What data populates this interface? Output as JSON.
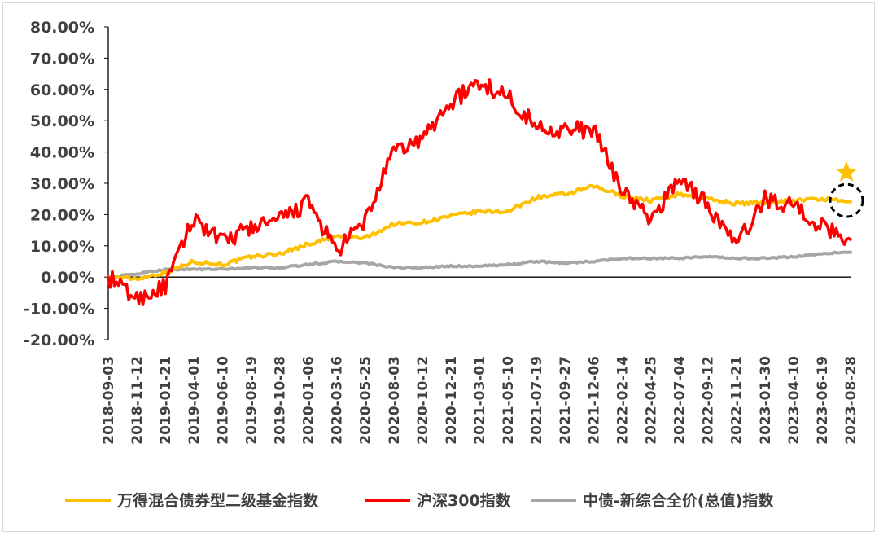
{
  "chart_data": {
    "type": "line",
    "title": "",
    "xlabel": "",
    "ylabel": "",
    "ylim": [
      -20,
      80
    ],
    "yticks": [
      "80.00%",
      "70.00%",
      "60.00%",
      "50.00%",
      "40.00%",
      "30.00%",
      "20.00%",
      "10.00%",
      "0.00%",
      "-10.00%",
      "-20.00%"
    ],
    "ytick_values": [
      80,
      70,
      60,
      50,
      40,
      30,
      20,
      10,
      0,
      -10,
      -20
    ],
    "x": [
      "2018-09-03",
      "2018-11-12",
      "2019-01-21",
      "2019-04-01",
      "2019-06-10",
      "2019-08-19",
      "2019-10-28",
      "2020-01-06",
      "2020-03-16",
      "2020-05-25",
      "2020-08-03",
      "2020-10-12",
      "2020-12-21",
      "2021-03-01",
      "2021-05-10",
      "2021-07-19",
      "2021-09-27",
      "2021-12-06",
      "2022-02-14",
      "2022-04-25",
      "2022-07-04",
      "2022-09-12",
      "2022-11-21",
      "2023-01-30",
      "2023-04-10",
      "2023-06-19",
      "2023-08-28"
    ],
    "legend_position": "bottom",
    "grid": false,
    "series": [
      {
        "name": "万得混合债券型二级基金指数",
        "color": "#FFC000",
        "values": [
          0.0,
          -0.5,
          1.5,
          5.0,
          4.0,
          6.5,
          7.5,
          10.5,
          13.0,
          12.5,
          17.0,
          17.5,
          19.5,
          21.0,
          21.0,
          25.5,
          26.5,
          29.0,
          26.0,
          24.5,
          26.5,
          25.0,
          23.5,
          24.0,
          24.5,
          25.0,
          24.0
        ]
      },
      {
        "name": "沪深300指数",
        "color": "#FF0000",
        "values": [
          0.0,
          -7.0,
          -3.0,
          19.0,
          11.0,
          16.0,
          18.0,
          24.0,
          8.0,
          18.0,
          40.0,
          44.0,
          56.0,
          62.0,
          58.0,
          48.0,
          47.0,
          47.0,
          28.0,
          18.0,
          32.0,
          23.0,
          10.0,
          25.0,
          23.0,
          16.0,
          12.0
        ]
      },
      {
        "name": "中债-新综合全价(总值)指数",
        "color": "#A6A6A6",
        "values": [
          0.0,
          1.0,
          2.5,
          2.5,
          2.5,
          3.0,
          3.0,
          4.0,
          5.0,
          4.5,
          3.0,
          3.0,
          3.5,
          3.5,
          4.0,
          5.0,
          4.5,
          5.0,
          6.0,
          6.0,
          6.0,
          6.5,
          6.0,
          6.0,
          6.5,
          7.5,
          8.0
        ]
      }
    ],
    "annotations": [
      {
        "type": "star",
        "color": "#FFC000",
        "x": "2023-08-28",
        "y": 33.5
      },
      {
        "type": "dashed-circle",
        "color": "#000000",
        "x": "2023-08-28",
        "y": 24.5
      }
    ]
  }
}
